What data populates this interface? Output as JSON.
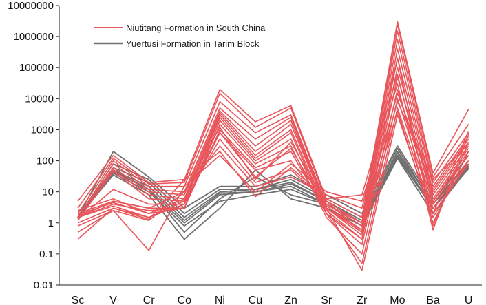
{
  "chart_data": {
    "type": "line",
    "title": "",
    "xlabel": "",
    "ylabel": "",
    "yscale": "log",
    "ylim": [
      0.01,
      10000000
    ],
    "yticks": [
      "0.01",
      "0.1",
      "1",
      "10",
      "100",
      "1000",
      "10000",
      "100000",
      "1000000",
      "10000000"
    ],
    "grid": false,
    "legend_position": "top-left",
    "categories": [
      "Sc",
      "V",
      "Cr",
      "Co",
      "Ni",
      "Cu",
      "Zn",
      "Sr",
      "Zr",
      "Mo",
      "Ba",
      "U"
    ],
    "groups": [
      {
        "name": "Niutitang Formation in South China",
        "color": "#e8555a",
        "series": [
          {
            "values": [
              5,
              150,
              20,
              25,
              20000,
              1800,
              6000,
              6,
              1.5,
              3000000,
              40,
              4500
            ]
          },
          {
            "values": [
              3,
              120,
              18,
              20,
              15000,
              1200,
              5000,
              5,
              1,
              2500000,
              30,
              1500
            ]
          },
          {
            "values": [
              2,
              100,
              15,
              15,
              8000,
              800,
              3000,
              4,
              0.8,
              1500000,
              20,
              800
            ]
          },
          {
            "values": [
              1.5,
              80,
              12,
              10,
              5000,
              500,
              2500,
              3.5,
              0.6,
              800000,
              15,
              600
            ]
          },
          {
            "values": [
              1.5,
              60,
              10,
              8,
              4000,
              300,
              2000,
              3,
              0.5,
              400000,
              10,
              400
            ]
          },
          {
            "values": [
              1.2,
              50,
              8,
              6,
              3500,
              200,
              1500,
              3,
              0.4,
              200000,
              8,
              300
            ]
          },
          {
            "values": [
              1.2,
              45,
              6,
              5,
              3000,
              150,
              1000,
              2.5,
              0.3,
              100000,
              6,
              250
            ]
          },
          {
            "values": [
              1.3,
              12,
              4,
              4,
              2500,
              120,
              800,
              2,
              0.3,
              50000,
              5,
              200
            ]
          },
          {
            "values": [
              1.5,
              5,
              3,
              3,
              2000,
              100,
              500,
              2,
              0.2,
              20000,
              4,
              150
            ]
          },
          {
            "values": [
              1.5,
              4,
              2.5,
              3,
              1500,
              80,
              300,
              1.5,
              0.1,
              10000,
              3,
              100
            ]
          },
          {
            "values": [
              1.8,
              4.5,
              2,
              3,
              1000,
              60,
              200,
              2,
              0.05,
              5000,
              2,
              80
            ]
          },
          {
            "values": [
              1.5,
              3.5,
              1.5,
              4,
              800,
              50,
              100,
              3,
              0.03,
              3000,
              1.5,
              100
            ]
          },
          {
            "values": [
              1,
              3,
              1.5,
              5,
              500,
              20,
              50,
              5,
              0.5,
              4000,
              1,
              200
            ]
          },
          {
            "values": [
              0.8,
              2.5,
              1.2,
              10,
              300,
              15,
              30,
              8,
              3,
              200000,
              0.8,
              400
            ]
          },
          {
            "values": [
              0.5,
              2.5,
              0.13,
              15,
              150,
              10,
              80,
              10,
              5,
              30000,
              0.6,
              700
            ]
          },
          {
            "values": [
              0.3,
              3,
              1.3,
              25,
              200,
              7,
              60,
              6,
              8,
              60000,
              2,
              900
            ]
          },
          {
            "values": [
              2,
              5,
              3,
              10,
              1200,
              25,
              400,
              4,
              1,
              15000,
              12,
              500
            ]
          },
          {
            "values": [
              2.5,
              6,
              2,
              6,
              800,
              30,
              250,
              3,
              0.6,
              8000,
              25,
              350
            ]
          }
        ]
      },
      {
        "name": "Yuertusi Formation in Tarim Block",
        "color": "#707070",
        "series": [
          {
            "values": [
              1.5,
              200,
              30,
              3,
              15,
              15,
              35,
              8,
              2,
              300,
              5,
              150
            ]
          },
          {
            "values": [
              1.5,
              80,
              25,
              2,
              12,
              12,
              25,
              6,
              1.5,
              250,
              4,
              100
            ]
          },
          {
            "values": [
              1.5,
              60,
              20,
              1.5,
              10,
              12,
              20,
              5,
              1.2,
              200,
              4,
              80
            ]
          },
          {
            "values": [
              1.5,
              50,
              15,
              1.2,
              9,
              10,
              18,
              5,
              1,
              180,
              3,
              70
            ]
          },
          {
            "values": [
              1.5,
              45,
              12,
              1,
              8,
              10,
              15,
              4,
              1,
              150,
              3,
              60
            ]
          },
          {
            "values": [
              1.5,
              40,
              10,
              0.8,
              5,
              8,
              12,
              4,
              0.8,
              130,
              3,
              55
            ]
          },
          {
            "values": [
              1.5,
              35,
              8,
              0.3,
              3,
              50,
              6,
              3,
              0.8,
              120,
              2,
              60
            ]
          },
          {
            "values": [
              1.5,
              50,
              12,
              0.5,
              6,
              30,
              8,
              4,
              1,
              140,
              3,
              65
            ]
          }
        ]
      }
    ]
  }
}
